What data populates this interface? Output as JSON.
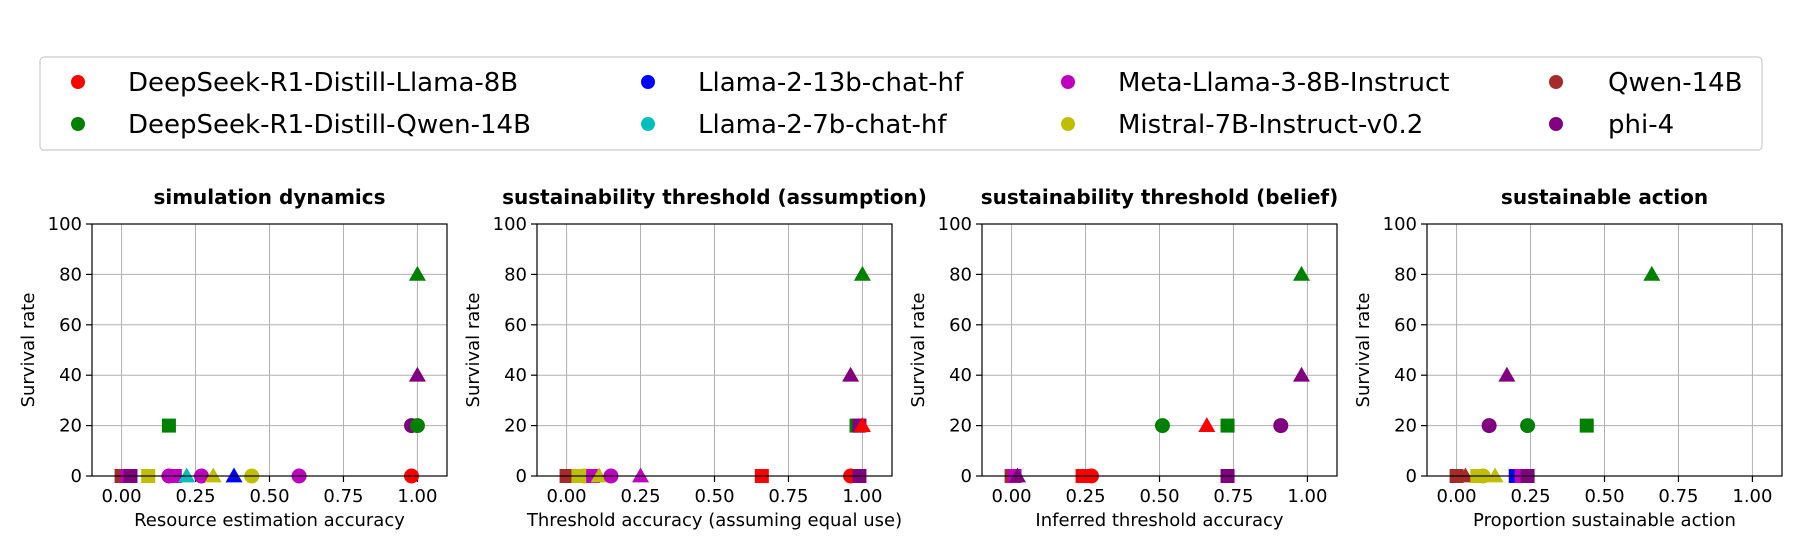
{
  "legend": {
    "placement": "top-center",
    "entries": [
      {
        "name": "DeepSeek-R1-Distill-Llama-8B",
        "color": "#ff0000"
      },
      {
        "name": "DeepSeek-R1-Distill-Qwen-14B",
        "color": "#008000"
      },
      {
        "name": "Llama-2-13b-chat-hf",
        "color": "#0000ff"
      },
      {
        "name": "Llama-2-7b-chat-hf",
        "color": "#00bfbf"
      },
      {
        "name": "Meta-Llama-3-8B-Instruct",
        "color": "#bf00bf"
      },
      {
        "name": "Mistral-7B-Instruct-v0.2",
        "color": "#bfbf00"
      },
      {
        "name": "Qwen-14B",
        "color": "#a52a2a"
      },
      {
        "name": "phi-4",
        "color": "#800080"
      }
    ]
  },
  "chart_data": [
    {
      "type": "scatter",
      "title": "simulation dynamics",
      "xlabel": "Resource estimation accuracy",
      "ylabel": "Survival rate",
      "xlim": [
        -0.1,
        1.1
      ],
      "ylim": [
        0,
        100
      ],
      "xticks": [
        "0.00",
        "0.25",
        "0.50",
        "0.75",
        "1.00"
      ],
      "yticks": [
        "0",
        "20",
        "40",
        "60",
        "80",
        "100"
      ],
      "grid": true,
      "points": [
        {
          "series": "DeepSeek-R1-Distill-Qwen-14B",
          "marker": "triangle",
          "x": 1.0,
          "y": 80
        },
        {
          "series": "phi-4",
          "marker": "triangle",
          "x": 1.0,
          "y": 40
        },
        {
          "series": "DeepSeek-R1-Distill-Qwen-14B",
          "marker": "square",
          "x": 0.16,
          "y": 20
        },
        {
          "series": "phi-4",
          "marker": "circle",
          "x": 0.98,
          "y": 20
        },
        {
          "series": "DeepSeek-R1-Distill-Qwen-14B",
          "marker": "circle",
          "x": 1.0,
          "y": 20
        },
        {
          "series": "Qwen-14B",
          "marker": "square",
          "x": 0.0,
          "y": 0
        },
        {
          "series": "Meta-Llama-3-8B-Instruct",
          "marker": "square",
          "x": 0.02,
          "y": 0
        },
        {
          "series": "phi-4",
          "marker": "square",
          "x": 0.03,
          "y": 0
        },
        {
          "series": "Mistral-7B-Instruct-v0.2",
          "marker": "square",
          "x": 0.09,
          "y": 0
        },
        {
          "series": "Meta-Llama-3-8B-Instruct",
          "marker": "circle",
          "x": 0.16,
          "y": 0
        },
        {
          "series": "Meta-Llama-3-8B-Instruct",
          "marker": "square",
          "x": 0.18,
          "y": 0
        },
        {
          "series": "Llama-2-7b-chat-hf",
          "marker": "triangle",
          "x": 0.22,
          "y": 0
        },
        {
          "series": "Meta-Llama-3-8B-Instruct",
          "marker": "circle",
          "x": 0.27,
          "y": 0
        },
        {
          "series": "Mistral-7B-Instruct-v0.2",
          "marker": "triangle",
          "x": 0.31,
          "y": 0
        },
        {
          "series": "Llama-2-13b-chat-hf",
          "marker": "triangle",
          "x": 0.38,
          "y": 0
        },
        {
          "series": "Mistral-7B-Instruct-v0.2",
          "marker": "circle",
          "x": 0.44,
          "y": 0
        },
        {
          "series": "Meta-Llama-3-8B-Instruct",
          "marker": "circle",
          "x": 0.6,
          "y": 0
        },
        {
          "series": "DeepSeek-R1-Distill-Llama-8B",
          "marker": "circle",
          "x": 0.98,
          "y": 0
        }
      ]
    },
    {
      "type": "scatter",
      "title": "sustainability threshold (assumption)",
      "xlabel": "Threshold accuracy (assuming equal use)",
      "ylabel": "Survival rate",
      "xlim": [
        -0.1,
        1.1
      ],
      "ylim": [
        0,
        100
      ],
      "xticks": [
        "0.00",
        "0.25",
        "0.50",
        "0.75",
        "1.00"
      ],
      "yticks": [
        "0",
        "20",
        "40",
        "60",
        "80",
        "100"
      ],
      "grid": true,
      "points": [
        {
          "series": "DeepSeek-R1-Distill-Qwen-14B",
          "marker": "triangle",
          "x": 1.0,
          "y": 80
        },
        {
          "series": "phi-4",
          "marker": "triangle",
          "x": 0.96,
          "y": 40
        },
        {
          "series": "DeepSeek-R1-Distill-Qwen-14B",
          "marker": "square",
          "x": 0.98,
          "y": 20
        },
        {
          "series": "phi-4",
          "marker": "square",
          "x": 0.99,
          "y": 20
        },
        {
          "series": "DeepSeek-R1-Distill-Llama-8B",
          "marker": "triangle",
          "x": 1.0,
          "y": 20
        },
        {
          "series": "Qwen-14B",
          "marker": "square",
          "x": 0.0,
          "y": 0
        },
        {
          "series": "Mistral-7B-Instruct-v0.2",
          "marker": "square",
          "x": 0.04,
          "y": 0
        },
        {
          "series": "Mistral-7B-Instruct-v0.2",
          "marker": "circle",
          "x": 0.06,
          "y": 0
        },
        {
          "series": "Meta-Llama-3-8B-Instruct",
          "marker": "square",
          "x": 0.09,
          "y": 0
        },
        {
          "series": "Mistral-7B-Instruct-v0.2",
          "marker": "triangle",
          "x": 0.11,
          "y": 0
        },
        {
          "series": "Meta-Llama-3-8B-Instruct",
          "marker": "circle",
          "x": 0.15,
          "y": 0
        },
        {
          "series": "Meta-Llama-3-8B-Instruct",
          "marker": "triangle",
          "x": 0.25,
          "y": 0
        },
        {
          "series": "DeepSeek-R1-Distill-Llama-8B",
          "marker": "square",
          "x": 0.66,
          "y": 0
        },
        {
          "series": "DeepSeek-R1-Distill-Llama-8B",
          "marker": "circle",
          "x": 0.96,
          "y": 0
        },
        {
          "series": "phi-4",
          "marker": "square",
          "x": 0.99,
          "y": 0
        }
      ]
    },
    {
      "type": "scatter",
      "title": "sustainability threshold (belief)",
      "xlabel": "Inferred threshold accuracy",
      "ylabel": "Survival rate",
      "xlim": [
        -0.1,
        1.1
      ],
      "ylim": [
        0,
        100
      ],
      "xticks": [
        "0.00",
        "0.25",
        "0.50",
        "0.75",
        "1.00"
      ],
      "yticks": [
        "0",
        "20",
        "40",
        "60",
        "80",
        "100"
      ],
      "grid": true,
      "points": [
        {
          "series": "DeepSeek-R1-Distill-Qwen-14B",
          "marker": "triangle",
          "x": 0.98,
          "y": 80
        },
        {
          "series": "phi-4",
          "marker": "triangle",
          "x": 0.98,
          "y": 40
        },
        {
          "series": "DeepSeek-R1-Distill-Qwen-14B",
          "marker": "circle",
          "x": 0.51,
          "y": 20
        },
        {
          "series": "DeepSeek-R1-Distill-Llama-8B",
          "marker": "triangle",
          "x": 0.66,
          "y": 20
        },
        {
          "series": "DeepSeek-R1-Distill-Qwen-14B",
          "marker": "square",
          "x": 0.73,
          "y": 20
        },
        {
          "series": "phi-4",
          "marker": "circle",
          "x": 0.91,
          "y": 20
        },
        {
          "series": "Qwen-14B",
          "marker": "square",
          "x": 0.0,
          "y": 0
        },
        {
          "series": "Meta-Llama-3-8B-Instruct",
          "marker": "square",
          "x": 0.01,
          "y": 0
        },
        {
          "series": "phi-4",
          "marker": "triangle",
          "x": 0.02,
          "y": 0
        },
        {
          "series": "DeepSeek-R1-Distill-Llama-8B",
          "marker": "square",
          "x": 0.24,
          "y": 0
        },
        {
          "series": "DeepSeek-R1-Distill-Llama-8B",
          "marker": "circle",
          "x": 0.27,
          "y": 0
        },
        {
          "series": "phi-4",
          "marker": "square",
          "x": 0.73,
          "y": 0
        }
      ]
    },
    {
      "type": "scatter",
      "title": "sustainable action",
      "xlabel": "Proportion sustainable action",
      "ylabel": "Survival rate",
      "xlim": [
        -0.1,
        1.1
      ],
      "ylim": [
        0,
        100
      ],
      "xticks": [
        "0.00",
        "0.25",
        "0.50",
        "0.75",
        "1.00"
      ],
      "yticks": [
        "0",
        "20",
        "40",
        "60",
        "80",
        "100"
      ],
      "grid": true,
      "points": [
        {
          "series": "DeepSeek-R1-Distill-Qwen-14B",
          "marker": "triangle",
          "x": 0.66,
          "y": 80
        },
        {
          "series": "phi-4",
          "marker": "triangle",
          "x": 0.17,
          "y": 40
        },
        {
          "series": "phi-4",
          "marker": "circle",
          "x": 0.11,
          "y": 20
        },
        {
          "series": "DeepSeek-R1-Distill-Qwen-14B",
          "marker": "circle",
          "x": 0.24,
          "y": 20
        },
        {
          "series": "DeepSeek-R1-Distill-Qwen-14B",
          "marker": "square",
          "x": 0.44,
          "y": 20
        },
        {
          "series": "Qwen-14B",
          "marker": "square",
          "x": 0.0,
          "y": 0
        },
        {
          "series": "Qwen-14B",
          "marker": "triangle",
          "x": 0.03,
          "y": 0
        },
        {
          "series": "Mistral-7B-Instruct-v0.2",
          "marker": "square",
          "x": 0.07,
          "y": 0
        },
        {
          "series": "Mistral-7B-Instruct-v0.2",
          "marker": "circle",
          "x": 0.09,
          "y": 0
        },
        {
          "series": "Mistral-7B-Instruct-v0.2",
          "marker": "triangle",
          "x": 0.13,
          "y": 0
        },
        {
          "series": "Llama-2-13b-chat-hf",
          "marker": "square",
          "x": 0.2,
          "y": 0
        },
        {
          "series": "Meta-Llama-3-8B-Instruct",
          "marker": "square",
          "x": 0.22,
          "y": 0
        },
        {
          "series": "phi-4",
          "marker": "square",
          "x": 0.24,
          "y": 0
        }
      ]
    }
  ]
}
